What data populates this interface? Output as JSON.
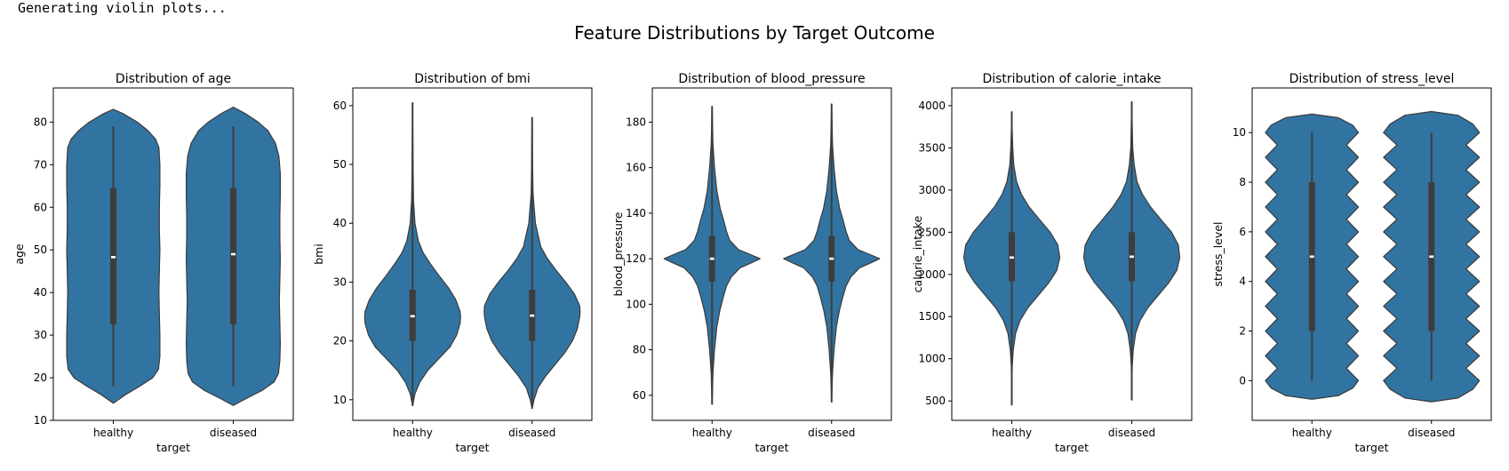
{
  "console_text": "Generating violin plots...",
  "colors": {
    "violin_fill": "#3274a1",
    "violin_edge": "#3a3a3a",
    "box": "#3d3d3d",
    "median": "#ffffff",
    "axis": "#000000"
  },
  "chart_data": {
    "type": "violin",
    "suptitle": "Feature Distributions by Target Outcome",
    "grid": false,
    "legend": "none",
    "panels": [
      {
        "title": "Distribution of age",
        "xlabel": "target",
        "ylabel": "age",
        "categories": [
          "healthy",
          "diseased"
        ],
        "ylim": [
          10,
          88
        ],
        "yticks": [
          10,
          20,
          30,
          40,
          50,
          60,
          70,
          80
        ],
        "groups": [
          {
            "name": "healthy",
            "whisker": [
              18,
              79
            ],
            "q1": 32.5,
            "median": 48.3,
            "q3": 64.5,
            "density_y": [
              14,
              16,
              18,
              20,
              22,
              25,
              30,
              35,
              40,
              45,
              50,
              55,
              60,
              65,
              70,
              74,
              76,
              78,
              80,
              82,
              83
            ],
            "density_w": [
              0.0,
              0.25,
              0.55,
              0.82,
              0.94,
              0.97,
              0.97,
              0.96,
              0.95,
              0.96,
              0.97,
              0.96,
              0.96,
              0.97,
              0.97,
              0.95,
              0.88,
              0.72,
              0.5,
              0.2,
              0.0
            ]
          },
          {
            "name": "diseased",
            "whisker": [
              18,
              79
            ],
            "q1": 32.5,
            "median": 49.0,
            "q3": 64.5,
            "density_y": [
              13.5,
              15,
              17,
              19,
              21,
              24,
              28,
              33,
              38,
              43,
              48,
              53,
              58,
              63,
              68,
              72,
              75,
              78,
              80,
              82,
              83.5
            ],
            "density_w": [
              0.0,
              0.25,
              0.6,
              0.85,
              0.94,
              0.97,
              0.98,
              0.97,
              0.96,
              0.97,
              0.98,
              0.97,
              0.97,
              0.98,
              0.98,
              0.95,
              0.88,
              0.72,
              0.52,
              0.25,
              0.0
            ]
          }
        ]
      },
      {
        "title": "Distribution of bmi",
        "xlabel": "target",
        "ylabel": "bmi",
        "categories": [
          "healthy",
          "diseased"
        ],
        "ylim": [
          6.5,
          63
        ],
        "yticks": [
          10,
          20,
          30,
          40,
          50,
          60
        ],
        "groups": [
          {
            "name": "healthy",
            "whisker": [
              9,
              60.5
            ],
            "q1": 20,
            "median": 24.2,
            "q3": 28.7,
            "density_y": [
              9,
              11,
              13,
              15,
              17,
              19,
              21,
              23,
              24,
              25,
              27,
              29,
              31,
              33,
              35,
              37,
              40,
              44,
              50,
              55,
              60.5
            ],
            "density_w": [
              0.0,
              0.05,
              0.15,
              0.32,
              0.55,
              0.78,
              0.92,
              0.99,
              1.0,
              0.99,
              0.9,
              0.75,
              0.56,
              0.38,
              0.22,
              0.12,
              0.05,
              0.02,
              0.01,
              0.005,
              0.0
            ]
          },
          {
            "name": "diseased",
            "whisker": [
              8.5,
              58
            ],
            "q1": 20,
            "median": 24.3,
            "q3": 28.7,
            "density_y": [
              8.5,
              10,
              12,
              14,
              16,
              18,
              20,
              22,
              24,
              25,
              26,
              28,
              30,
              32,
              34,
              36,
              40,
              45,
              50,
              55,
              58
            ],
            "density_w": [
              0.0,
              0.04,
              0.12,
              0.28,
              0.48,
              0.68,
              0.84,
              0.94,
              0.99,
              1.0,
              0.99,
              0.88,
              0.7,
              0.5,
              0.32,
              0.18,
              0.07,
              0.02,
              0.01,
              0.005,
              0.0
            ]
          }
        ]
      },
      {
        "title": "Distribution of blood_pressure",
        "xlabel": "target",
        "ylabel": "blood_pressure",
        "categories": [
          "healthy",
          "diseased"
        ],
        "ylim": [
          49,
          195
        ],
        "yticks": [
          60,
          80,
          100,
          120,
          140,
          160,
          180
        ],
        "groups": [
          {
            "name": "healthy",
            "whisker": [
              56,
              187
            ],
            "q1": 110,
            "median": 120,
            "q3": 130,
            "density_y": [
              56,
              70,
              80,
              90,
              97,
              103,
              108,
              112,
              116,
              118,
              120,
              122,
              124,
              128,
              132,
              137,
              142,
              150,
              160,
              170,
              187
            ],
            "density_w": [
              0.0,
              0.02,
              0.05,
              0.1,
              0.16,
              0.23,
              0.3,
              0.4,
              0.58,
              0.8,
              1.0,
              0.78,
              0.55,
              0.37,
              0.3,
              0.24,
              0.17,
              0.1,
              0.05,
              0.02,
              0.0
            ]
          },
          {
            "name": "diseased",
            "whisker": [
              57,
              188
            ],
            "q1": 110,
            "median": 120,
            "q3": 130,
            "density_y": [
              57,
              70,
              80,
              90,
              97,
              103,
              108,
              112,
              116,
              118,
              120,
              122,
              124,
              128,
              132,
              137,
              142,
              150,
              160,
              170,
              188
            ],
            "density_w": [
              0.0,
              0.02,
              0.05,
              0.1,
              0.16,
              0.23,
              0.3,
              0.4,
              0.58,
              0.8,
              1.0,
              0.78,
              0.55,
              0.37,
              0.3,
              0.24,
              0.17,
              0.1,
              0.05,
              0.02,
              0.0
            ]
          }
        ]
      },
      {
        "title": "Distribution of calorie_intake",
        "xlabel": "target",
        "ylabel": "calorie_intake",
        "categories": [
          "healthy",
          "diseased"
        ],
        "ylim": [
          270,
          4210
        ],
        "yticks": [
          500,
          1000,
          1500,
          2000,
          2500,
          3000,
          3500,
          4000
        ],
        "groups": [
          {
            "name": "healthy",
            "whisker": [
              450,
              3930
            ],
            "q1": 1920,
            "median": 2200,
            "q3": 2500,
            "density_y": [
              450,
              900,
              1100,
              1300,
              1450,
              1600,
              1750,
              1900,
              2050,
              2200,
              2350,
              2500,
              2650,
              2800,
              2950,
              3100,
              3300,
              3500,
              3700,
              3930
            ],
            "density_w": [
              0.0,
              0.01,
              0.03,
              0.08,
              0.17,
              0.33,
              0.55,
              0.77,
              0.94,
              1.0,
              0.96,
              0.8,
              0.58,
              0.36,
              0.2,
              0.1,
              0.04,
              0.02,
              0.01,
              0.0
            ]
          },
          {
            "name": "diseased",
            "whisker": [
              510,
              4050
            ],
            "q1": 1920,
            "median": 2210,
            "q3": 2500,
            "density_y": [
              510,
              900,
              1100,
              1300,
              1450,
              1600,
              1750,
              1900,
              2050,
              2200,
              2350,
              2500,
              2650,
              2800,
              2950,
              3100,
              3300,
              3500,
              3800,
              4050
            ],
            "density_w": [
              0.0,
              0.01,
              0.03,
              0.08,
              0.17,
              0.33,
              0.55,
              0.77,
              0.94,
              1.0,
              0.97,
              0.83,
              0.61,
              0.39,
              0.22,
              0.11,
              0.05,
              0.02,
              0.01,
              0.0
            ]
          }
        ]
      },
      {
        "title": "Distribution of stress_level",
        "xlabel": "target",
        "ylabel": "stress_level",
        "categories": [
          "healthy",
          "diseased"
        ],
        "ylim": [
          -1.6,
          11.8
        ],
        "yticks": [
          0,
          2,
          4,
          6,
          8,
          10
        ],
        "groups": [
          {
            "name": "healthy",
            "whisker": [
              0,
              10
            ],
            "q1": 2,
            "median": 5,
            "q3": 8,
            "density_y": [
              -0.75,
              -0.6,
              -0.3,
              0,
              0.5,
              1,
              1.5,
              2,
              2.5,
              3,
              3.5,
              4,
              4.5,
              5,
              5.5,
              6,
              6.5,
              7,
              7.5,
              8,
              8.5,
              9,
              9.5,
              10,
              10.3,
              10.6,
              10.75
            ],
            "density_w": [
              0.0,
              0.55,
              0.85,
              0.97,
              0.72,
              0.97,
              0.72,
              0.97,
              0.72,
              0.97,
              0.72,
              0.97,
              0.72,
              0.97,
              0.72,
              0.97,
              0.72,
              0.97,
              0.72,
              0.97,
              0.72,
              0.97,
              0.72,
              0.97,
              0.85,
              0.55,
              0.0
            ]
          },
          {
            "name": "diseased",
            "whisker": [
              0,
              10
            ],
            "q1": 2,
            "median": 5,
            "q3": 8,
            "density_y": [
              -0.85,
              -0.7,
              -0.35,
              0,
              0.5,
              1,
              1.5,
              2,
              2.5,
              3,
              3.5,
              4,
              4.5,
              5,
              5.5,
              6,
              6.5,
              7,
              7.5,
              8,
              8.5,
              9,
              9.5,
              10,
              10.35,
              10.7,
              10.85
            ],
            "density_w": [
              0.0,
              0.55,
              0.86,
              1.0,
              0.72,
              1.0,
              0.72,
              1.0,
              0.72,
              1.0,
              0.72,
              1.0,
              0.72,
              1.0,
              0.72,
              1.0,
              0.72,
              1.0,
              0.72,
              1.0,
              0.72,
              1.0,
              0.72,
              1.0,
              0.86,
              0.55,
              0.0
            ]
          }
        ]
      }
    ]
  }
}
